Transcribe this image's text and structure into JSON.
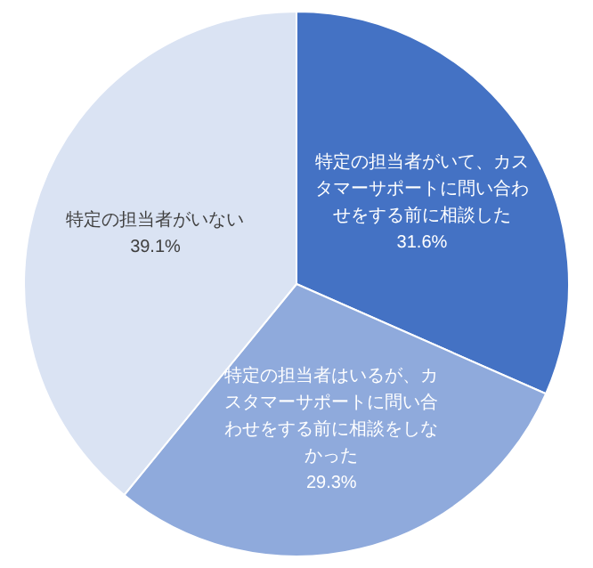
{
  "chart_data": {
    "type": "pie",
    "categories": [
      "特定の担当者がいて、カスタマーサポートに問い合わせをする前に相談した",
      "特定の担当者はいるが、カスタマーサポートに問い合わせをする前に相談をしなかった",
      "特定の担当者がいない"
    ],
    "values": [
      31.6,
      29.3,
      39.1
    ],
    "value_labels": [
      "31.6%",
      "29.3%",
      "39.1%"
    ],
    "colors": [
      "#4472c4",
      "#8faadc",
      "#dae3f3"
    ],
    "legend": false
  }
}
